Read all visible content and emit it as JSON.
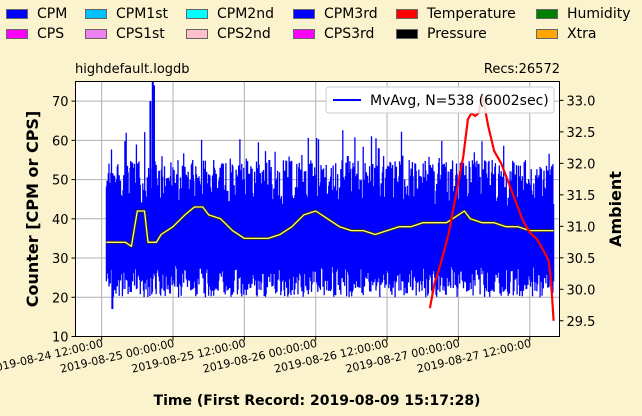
{
  "legend": [
    {
      "label": "CPM",
      "color": "#0000ff"
    },
    {
      "label": "CPM1st",
      "color": "#00bfff"
    },
    {
      "label": "CPM2nd",
      "color": "#00ffff"
    },
    {
      "label": "CPM3rd",
      "color": "#0000ff"
    },
    {
      "label": "Temperature",
      "color": "#ff0000"
    },
    {
      "label": "Humidity",
      "color": "#008000"
    },
    {
      "label": "CPS",
      "color": "#ff00ff"
    },
    {
      "label": "CPS1st",
      "color": "#ee82ee"
    },
    {
      "label": "CPS2nd",
      "color": "#ffc0cb"
    },
    {
      "label": "CPS3rd",
      "color": "#ff00ff"
    },
    {
      "label": "Pressure",
      "color": "#000000"
    },
    {
      "label": "Xtra",
      "color": "#ffa500"
    }
  ],
  "header": {
    "filename": "highdefault.logdb",
    "records": "Recs:26572"
  },
  "chart_data": {
    "type": "line",
    "title": "",
    "xlabel": "Time (First Record: 2019-08-09 15:17:28)",
    "ylabel_left": "Counter  [CPM or CPS]",
    "ylabel_right": "Ambient",
    "ylim_left": [
      10,
      75
    ],
    "yticks_left": [
      10,
      20,
      30,
      40,
      50,
      60,
      70
    ],
    "ylim_right": [
      29.25,
      33.3
    ],
    "yticks_right": [
      29.5,
      30.0,
      30.5,
      31.0,
      31.5,
      32.0,
      32.5,
      33.0
    ],
    "xlim_hours": [
      -2.2,
      38.5
    ],
    "x_ticks": [
      {
        "h": 0,
        "label": "2019-08-24  12:00:00"
      },
      {
        "h": 6,
        "label": "2019-08-25  00:00:00"
      },
      {
        "h": 12,
        "label": "2019-08-25  12:00:00"
      },
      {
        "h": 18,
        "label": "2019-08-26  00:00:00"
      },
      {
        "h": 24,
        "label": "2019-08-26  12:00:00"
      },
      {
        "h": 30,
        "label": "2019-08-27  00:00:00"
      },
      {
        "h": 36,
        "label": "2019-08-27  12:00:00"
      }
    ],
    "grid": true,
    "legend_inside": {
      "label": "MvAvg, N=538 (6002sec)",
      "position": "top-right"
    },
    "series": [
      {
        "name": "CPM",
        "color": "#0000ff",
        "axis": "left",
        "x_start_h": 0.4,
        "x_end_h": 38.0,
        "range": [
          28,
          55
        ],
        "spikes": [
          [
            4.3,
            75
          ],
          [
            4.4,
            74
          ],
          [
            4.1,
            70
          ],
          [
            14.1,
            55
          ],
          [
            17.5,
            54
          ],
          [
            19.6,
            48
          ],
          [
            20.7,
            56
          ],
          [
            23.3,
            58
          ],
          [
            26.0,
            51
          ],
          [
            31.7,
            54
          ],
          [
            0.9,
            17
          ]
        ]
      },
      {
        "name": "MvAvg, N=538 (6002sec)",
        "color": "#ffff80",
        "axis": "left",
        "x": [
          0.4,
          1.2,
          2.0,
          2.5,
          3.0,
          3.3,
          3.6,
          3.9,
          4.2,
          4.6,
          5.0,
          6.0,
          7.0,
          7.8,
          8.5,
          9.0,
          10.0,
          11.0,
          12.0,
          13.0,
          14.0,
          15.0,
          16.0,
          17.0,
          18.0,
          19.0,
          20.0,
          21.0,
          22.0,
          23.0,
          24.0,
          25.0,
          26.0,
          27.0,
          28.0,
          29.0,
          30.0,
          30.5,
          31.0,
          32.0,
          33.0,
          34.0,
          35.0,
          36.0,
          37.0,
          38.0
        ],
        "y": [
          34,
          34,
          34,
          33,
          42,
          42,
          42,
          34,
          34,
          34,
          36,
          38,
          41,
          43,
          43,
          41,
          40,
          37,
          35,
          35,
          35,
          36,
          38,
          41,
          42,
          40,
          38,
          37,
          37,
          36,
          37,
          38,
          38,
          39,
          39,
          39,
          41,
          42,
          40,
          39,
          39,
          38,
          38,
          37,
          37,
          37
        ]
      },
      {
        "name": "Temperature",
        "color": "#ff0000",
        "axis": "right",
        "x": [
          27.6,
          28.0,
          28.5,
          29.2,
          29.8,
          30.4,
          30.8,
          31.1,
          31.4,
          31.7,
          32.0,
          32.5,
          33.0,
          33.6,
          34.2,
          34.8,
          35.4,
          36.0,
          36.6,
          37.2,
          37.6,
          37.8,
          38.0
        ],
        "y": [
          29.7,
          30.1,
          30.4,
          30.9,
          31.5,
          32.1,
          32.7,
          32.8,
          32.75,
          32.8,
          33.1,
          32.6,
          32.2,
          32.0,
          31.7,
          31.4,
          31.1,
          30.9,
          30.8,
          30.6,
          30.45,
          30.1,
          29.5
        ]
      }
    ]
  }
}
